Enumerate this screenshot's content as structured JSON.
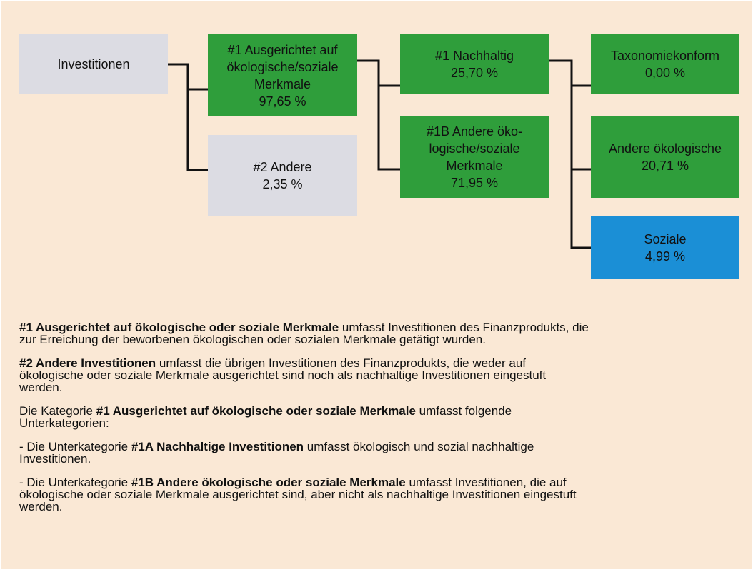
{
  "nodes": [
    {
      "lines": [
        "Investitionen"
      ]
    },
    {
      "lines": [
        "#1 Ausgerichtet auf",
        "ökologische/soziale",
        "Merkmale",
        "97,65 %"
      ]
    },
    {
      "lines": [
        "#2 Andere",
        "2,35 %"
      ]
    },
    {
      "lines": [
        "#1 Nachhaltig",
        "25,70 %"
      ]
    },
    {
      "lines": [
        "#1B Andere öko-",
        "logische/soziale",
        "Merkmale",
        "71,95 %"
      ]
    },
    {
      "lines": [
        "Taxonomiekonform",
        "0,00 %"
      ]
    },
    {
      "lines": [
        "Andere ökologische",
        "20,71 %"
      ]
    },
    {
      "lines": [
        "Soziale",
        "4,99 %"
      ]
    }
  ],
  "paragraphs": [
    [
      {
        "bold": "#1 Ausgerichtet auf ökologische oder soziale Merkmale"
      },
      {
        "text": " umfasst Investitionen des Finanzprodukts, die zur Erreichung der beworbenen ökologischen oder sozialen Merkmale getätigt wurden."
      }
    ],
    [
      {
        "bold": "#2 Andere Investitionen"
      },
      {
        "text": " umfasst die übrigen Investitionen des Finanzprodukts, die weder auf ökologische oder soziale Merkmale ausgerichtet sind noch als nachhaltige Investitionen eingestuft werden."
      }
    ],
    [
      {
        "text": "Die Kategorie "
      },
      {
        "bold": "#1 Ausgerichtet auf ökologische oder soziale Merkmale"
      },
      {
        "text": " umfasst folgende Unterkategorien:"
      }
    ],
    [
      {
        "text": "- Die Unterkategorie "
      },
      {
        "bold": "#1A Nachhaltige Investitionen"
      },
      {
        "text": " umfasst ökologisch und sozial nachhaltige Investitionen."
      }
    ],
    [
      {
        "text": "- Die Unterkategorie "
      },
      {
        "bold": "#1B Andere ökologische oder soziale Merkmale"
      },
      {
        "text": " umfasst Investitionen, die auf ökologische oder soziale Merkmale ausgerichtet sind, aber nicht als nachhaltige Investitionen eingestuft werden."
      }
    ]
  ]
}
